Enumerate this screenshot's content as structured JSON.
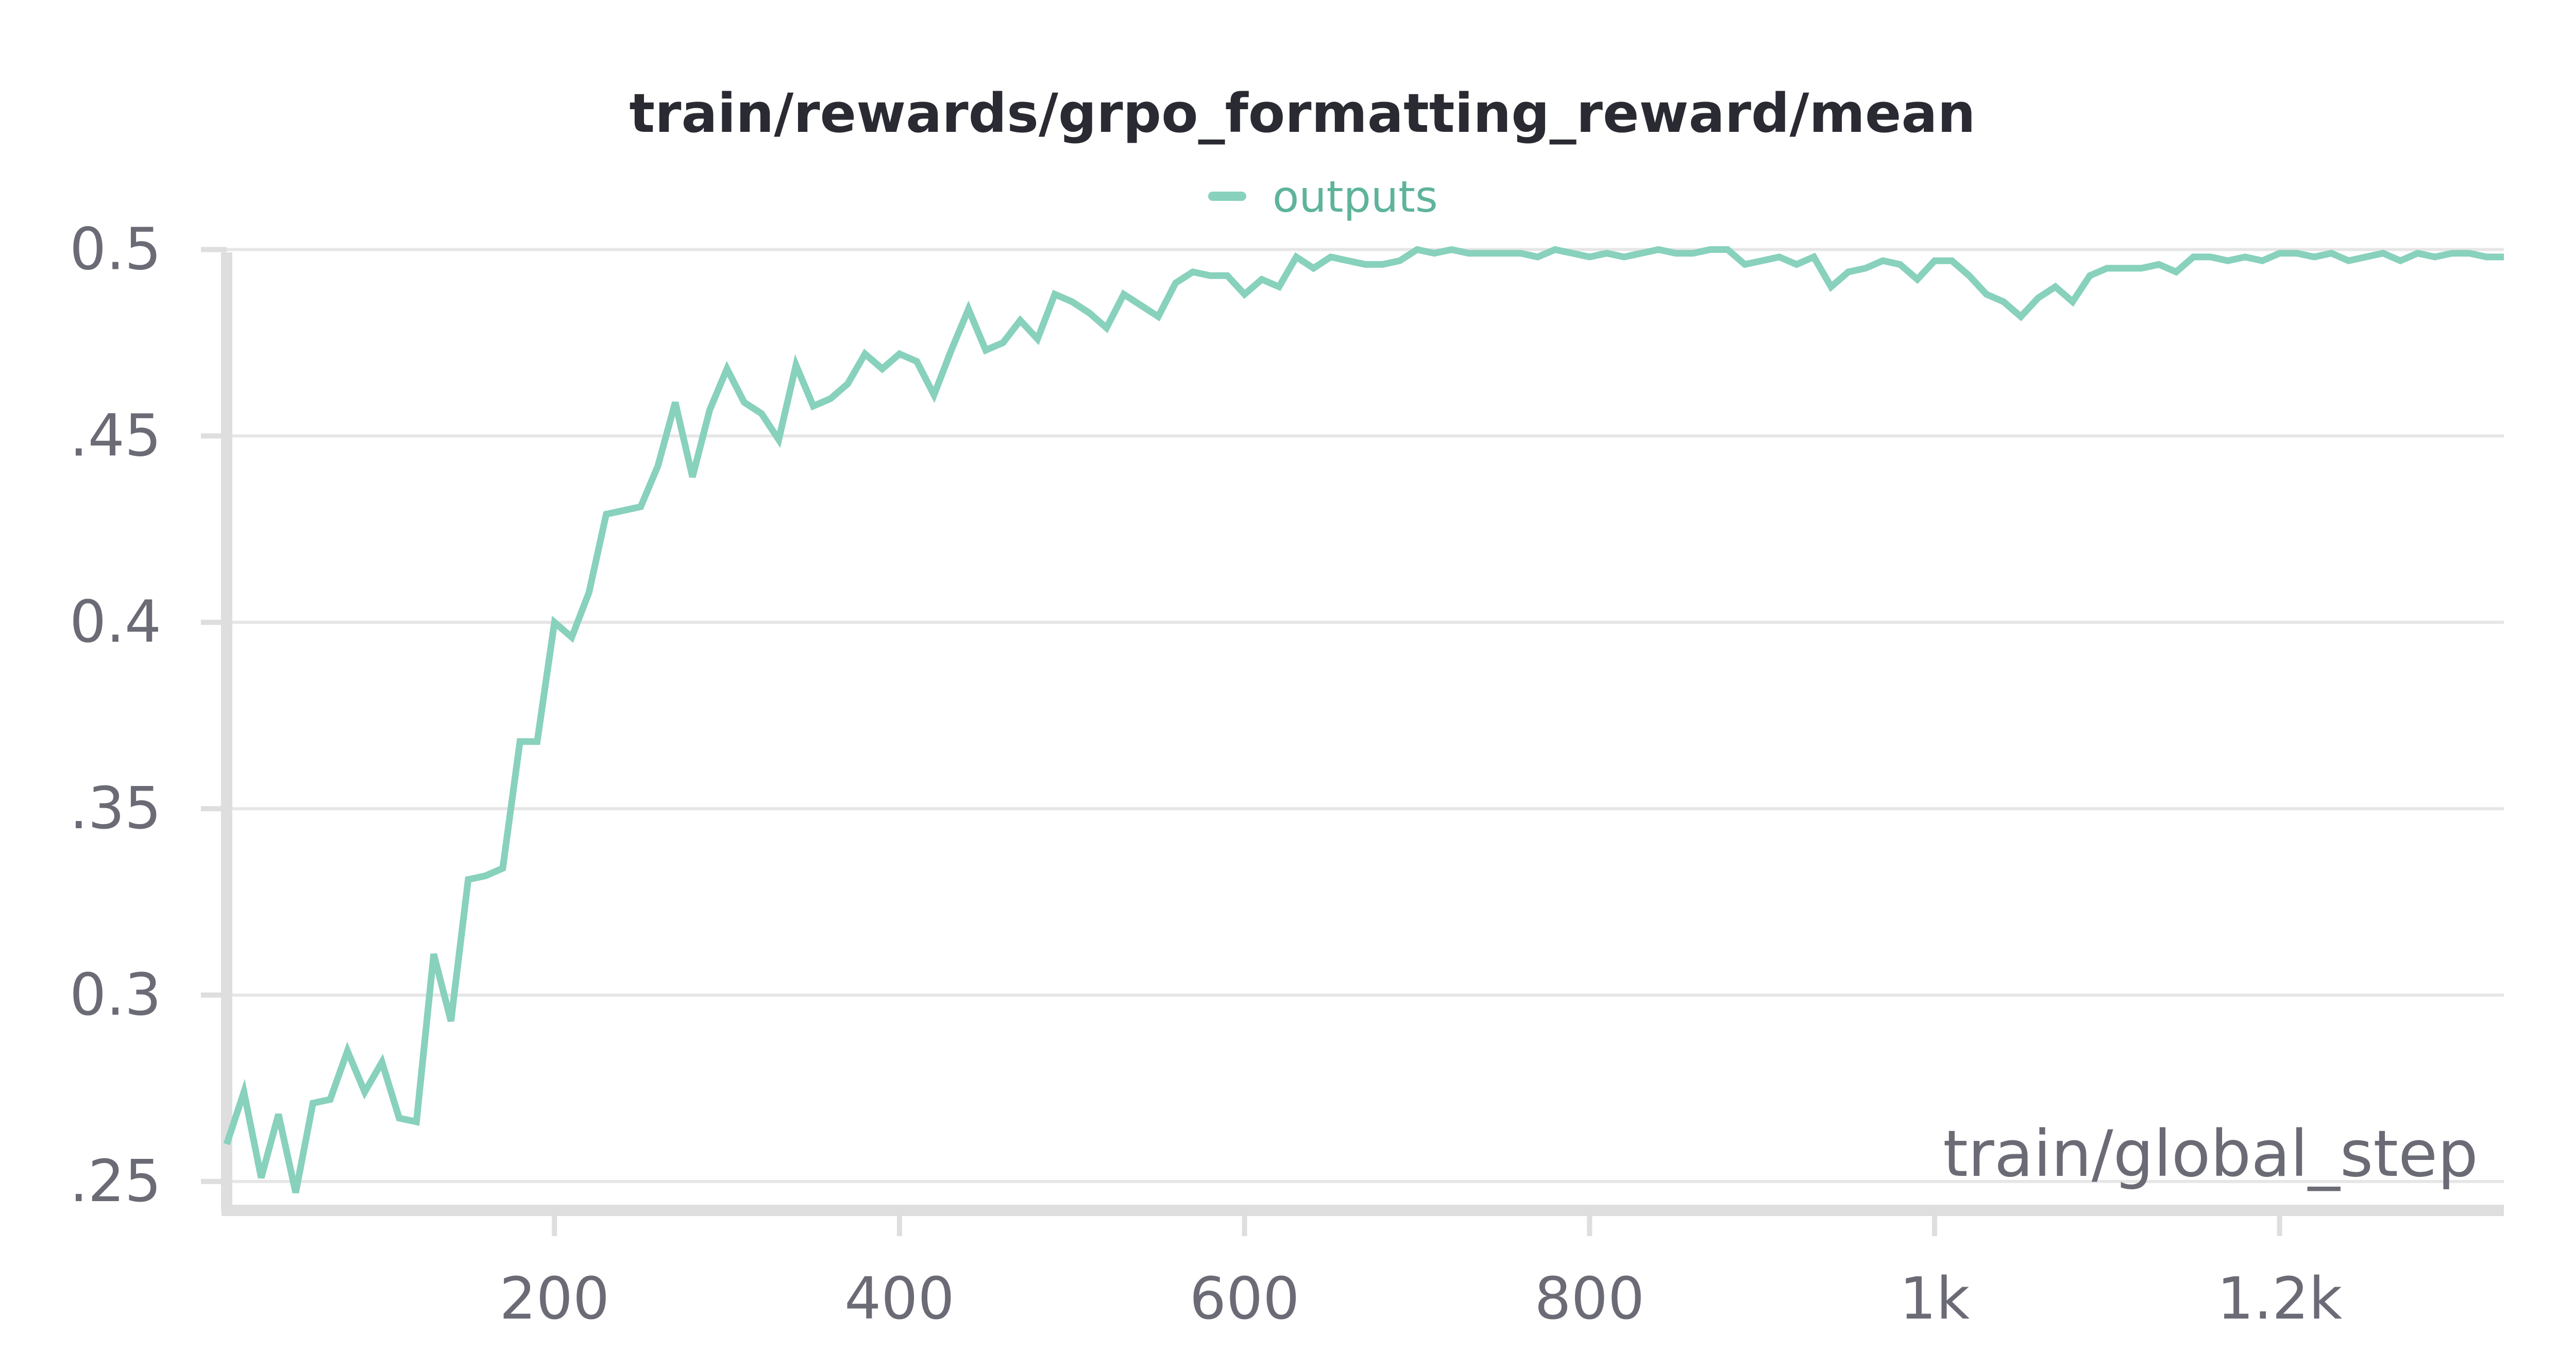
{
  "chart_data": {
    "type": "line",
    "title": "train/rewards/grpo_formatting_reward/mean",
    "xlabel": "train/global_step",
    "ylabel": "",
    "xlim": [
      10,
      1330
    ],
    "ylim": [
      0.245,
      0.502
    ],
    "x_ticks": [
      200,
      400,
      600,
      800,
      1000,
      1200
    ],
    "x_tick_labels": [
      "200",
      "400",
      "600",
      "800",
      "1k",
      "1.2k"
    ],
    "y_ticks": [
      0.25,
      0.3,
      0.35,
      0.4,
      0.45,
      0.5
    ],
    "y_tick_labels": [
      ".25",
      "0.3",
      ".35",
      "0.4",
      ".45",
      "0.5"
    ],
    "grid": true,
    "legend_position": "top-center",
    "series": [
      {
        "name": "outputs",
        "color": "#88d1bc",
        "x": [
          10,
          20,
          30,
          40,
          50,
          60,
          70,
          80,
          90,
          100,
          110,
          120,
          130,
          140,
          150,
          160,
          170,
          180,
          190,
          200,
          210,
          220,
          230,
          240,
          250,
          260,
          270,
          280,
          290,
          300,
          310,
          320,
          330,
          340,
          350,
          360,
          370,
          380,
          390,
          400,
          410,
          420,
          430,
          440,
          450,
          460,
          470,
          480,
          490,
          500,
          510,
          520,
          530,
          540,
          550,
          560,
          570,
          580,
          590,
          600,
          610,
          620,
          630,
          640,
          650,
          660,
          670,
          680,
          690,
          700,
          710,
          720,
          730,
          740,
          750,
          760,
          770,
          780,
          790,
          800,
          810,
          820,
          830,
          840,
          850,
          860,
          870,
          880,
          890,
          900,
          910,
          920,
          930,
          940,
          950,
          960,
          970,
          980,
          990,
          1000,
          1010,
          1020,
          1030,
          1040,
          1050,
          1060,
          1070,
          1080,
          1090,
          1100,
          1110,
          1120,
          1130,
          1140,
          1150,
          1160,
          1170,
          1180,
          1190,
          1200,
          1210,
          1220,
          1230,
          1240,
          1250,
          1260,
          1270,
          1280,
          1290,
          1300,
          1310,
          1320,
          1330
        ],
        "values": [
          0.26,
          0.274,
          0.251,
          0.268,
          0.247,
          0.271,
          0.272,
          0.285,
          0.274,
          0.282,
          0.267,
          0.266,
          0.311,
          0.293,
          0.331,
          0.332,
          0.334,
          0.368,
          0.368,
          0.4,
          0.396,
          0.408,
          0.429,
          0.43,
          0.431,
          0.442,
          0.459,
          0.439,
          0.457,
          0.468,
          0.459,
          0.456,
          0.449,
          0.469,
          0.458,
          0.46,
          0.464,
          0.472,
          0.468,
          0.472,
          0.47,
          0.461,
          0.473,
          0.484,
          0.473,
          0.475,
          0.481,
          0.476,
          0.488,
          0.486,
          0.483,
          0.479,
          0.488,
          0.485,
          0.482,
          0.491,
          0.494,
          0.493,
          0.493,
          0.488,
          0.492,
          0.49,
          0.498,
          0.495,
          0.498,
          0.497,
          0.496,
          0.496,
          0.497,
          0.5,
          0.499,
          0.5,
          0.499,
          0.499,
          0.499,
          0.499,
          0.498,
          0.5,
          0.499,
          0.498,
          0.499,
          0.498,
          0.499,
          0.5,
          0.499,
          0.499,
          0.5,
          0.5,
          0.496,
          0.497,
          0.498,
          0.496,
          0.498,
          0.49,
          0.494,
          0.495,
          0.497,
          0.496,
          0.492,
          0.497,
          0.497,
          0.493,
          0.488,
          0.486,
          0.482,
          0.487,
          0.49,
          0.486,
          0.493,
          0.495,
          0.495,
          0.495,
          0.496,
          0.494,
          0.498,
          0.498,
          0.497,
          0.498,
          0.497,
          0.499,
          0.499,
          0.498,
          0.499,
          0.497,
          0.498,
          0.499,
          0.497,
          0.499,
          0.498,
          0.499,
          0.499,
          0.498,
          0.498
        ]
      }
    ]
  }
}
